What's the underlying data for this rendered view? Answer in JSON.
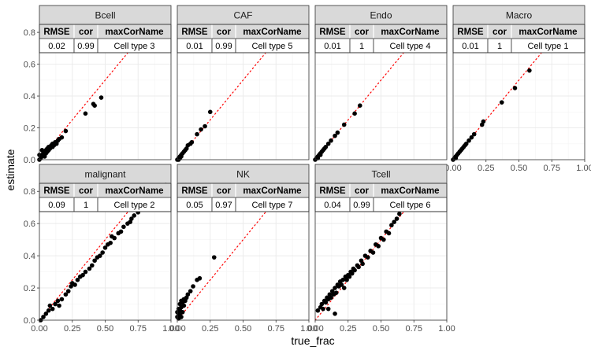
{
  "chart_data": {
    "type": "scatter",
    "xlabel": "true_frac",
    "ylabel": "estimate",
    "xlim": [
      0,
      1
    ],
    "ylim": [
      0,
      0.85
    ],
    "x_ticks": [
      "0.00",
      "0.25",
      "0.50",
      "0.75",
      "1.00"
    ],
    "y_ticks": [
      "0.0",
      "0.2",
      "0.4",
      "0.6",
      "0.8"
    ],
    "reference_line": "y = x (red dotted)",
    "grid": true,
    "colors": {
      "points": "#000000",
      "reference": "#ff0000",
      "strip_fill": "#d9d9d9",
      "header_fill": "#d9d9d9",
      "grid": "#ebebeb"
    },
    "table_columns": [
      "RMSE",
      "cor",
      "maxCorName"
    ],
    "panels": [
      {
        "name": "Bcell",
        "table": [
          "0.02",
          "0.99",
          "Cell type 3"
        ],
        "points": [
          [
            0.0,
            0.0
          ],
          [
            0.01,
            0.01
          ],
          [
            0.01,
            0.02
          ],
          [
            0.02,
            0.02
          ],
          [
            0.02,
            0.03
          ],
          [
            0.03,
            0.03
          ],
          [
            0.03,
            0.04
          ],
          [
            0.04,
            0.05
          ],
          [
            0.05,
            0.04
          ],
          [
            0.05,
            0.06
          ],
          [
            0.06,
            0.05
          ],
          [
            0.06,
            0.07
          ],
          [
            0.07,
            0.06
          ],
          [
            0.07,
            0.08
          ],
          [
            0.08,
            0.07
          ],
          [
            0.09,
            0.09
          ],
          [
            0.1,
            0.08
          ],
          [
            0.1,
            0.1
          ],
          [
            0.11,
            0.09
          ],
          [
            0.12,
            0.11
          ],
          [
            0.13,
            0.1
          ],
          [
            0.14,
            0.12
          ],
          [
            0.15,
            0.13
          ],
          [
            0.17,
            0.14
          ],
          [
            0.2,
            0.18
          ],
          [
            0.35,
            0.29
          ],
          [
            0.41,
            0.35
          ],
          [
            0.42,
            0.34
          ],
          [
            0.47,
            0.39
          ],
          [
            0.02,
            0.06
          ],
          [
            0.04,
            0.02
          ],
          [
            0.0,
            0.03
          ]
        ]
      },
      {
        "name": "CAF",
        "table": [
          "0.01",
          "0.99",
          "Cell type 5"
        ],
        "points": [
          [
            0.0,
            0.0
          ],
          [
            0.01,
            0.01
          ],
          [
            0.02,
            0.02
          ],
          [
            0.02,
            0.01
          ],
          [
            0.03,
            0.03
          ],
          [
            0.04,
            0.04
          ],
          [
            0.05,
            0.05
          ],
          [
            0.06,
            0.06
          ],
          [
            0.07,
            0.07
          ],
          [
            0.08,
            0.09
          ],
          [
            0.1,
            0.1
          ],
          [
            0.11,
            0.11
          ],
          [
            0.15,
            0.16
          ],
          [
            0.18,
            0.19
          ],
          [
            0.21,
            0.21
          ],
          [
            0.25,
            0.3
          ],
          [
            0.03,
            0.02
          ],
          [
            0.01,
            0.0
          ]
        ]
      },
      {
        "name": "Endo",
        "table": [
          "0.01",
          "1",
          "Cell type 4"
        ],
        "points": [
          [
            0.0,
            0.0
          ],
          [
            0.01,
            0.01
          ],
          [
            0.02,
            0.02
          ],
          [
            0.03,
            0.03
          ],
          [
            0.04,
            0.04
          ],
          [
            0.05,
            0.05
          ],
          [
            0.06,
            0.06
          ],
          [
            0.07,
            0.07
          ],
          [
            0.08,
            0.08
          ],
          [
            0.1,
            0.1
          ],
          [
            0.12,
            0.12
          ],
          [
            0.15,
            0.15
          ],
          [
            0.17,
            0.17
          ],
          [
            0.22,
            0.22
          ],
          [
            0.3,
            0.29
          ],
          [
            0.34,
            0.34
          ],
          [
            0.02,
            0.01
          ],
          [
            0.04,
            0.03
          ]
        ]
      },
      {
        "name": "Macro",
        "table": [
          "0.01",
          "1",
          "Cell type 1"
        ],
        "points": [
          [
            0.0,
            0.0
          ],
          [
            0.01,
            0.01
          ],
          [
            0.02,
            0.02
          ],
          [
            0.03,
            0.03
          ],
          [
            0.04,
            0.04
          ],
          [
            0.05,
            0.05
          ],
          [
            0.06,
            0.06
          ],
          [
            0.07,
            0.07
          ],
          [
            0.08,
            0.08
          ],
          [
            0.09,
            0.09
          ],
          [
            0.1,
            0.1
          ],
          [
            0.12,
            0.12
          ],
          [
            0.14,
            0.14
          ],
          [
            0.16,
            0.16
          ],
          [
            0.22,
            0.22
          ],
          [
            0.23,
            0.24
          ],
          [
            0.37,
            0.36
          ],
          [
            0.47,
            0.45
          ],
          [
            0.58,
            0.56
          ],
          [
            0.02,
            0.01
          ]
        ]
      },
      {
        "name": "malignant",
        "table": [
          "0.09",
          "1",
          "Cell type 2"
        ],
        "points": [
          [
            0.01,
            0.0
          ],
          [
            0.03,
            0.02
          ],
          [
            0.05,
            0.04
          ],
          [
            0.07,
            0.06
          ],
          [
            0.08,
            0.09
          ],
          [
            0.1,
            0.07
          ],
          [
            0.12,
            0.1
          ],
          [
            0.14,
            0.12
          ],
          [
            0.15,
            0.09
          ],
          [
            0.17,
            0.13
          ],
          [
            0.2,
            0.16
          ],
          [
            0.22,
            0.18
          ],
          [
            0.24,
            0.21
          ],
          [
            0.25,
            0.23
          ],
          [
            0.27,
            0.22
          ],
          [
            0.29,
            0.25
          ],
          [
            0.31,
            0.27
          ],
          [
            0.33,
            0.28
          ],
          [
            0.35,
            0.3
          ],
          [
            0.38,
            0.32
          ],
          [
            0.4,
            0.34
          ],
          [
            0.42,
            0.37
          ],
          [
            0.44,
            0.39
          ],
          [
            0.46,
            0.4
          ],
          [
            0.48,
            0.42
          ],
          [
            0.5,
            0.45
          ],
          [
            0.52,
            0.47
          ],
          [
            0.54,
            0.48
          ],
          [
            0.57,
            0.51
          ],
          [
            0.6,
            0.54
          ],
          [
            0.62,
            0.55
          ],
          [
            0.64,
            0.58
          ],
          [
            0.67,
            0.6
          ],
          [
            0.7,
            0.63
          ],
          [
            0.72,
            0.65
          ],
          [
            0.75,
            0.67
          ],
          [
            0.77,
            0.69
          ],
          [
            0.79,
            0.71
          ],
          [
            0.82,
            0.73
          ],
          [
            0.84,
            0.75
          ],
          [
            0.87,
            0.78
          ],
          [
            0.89,
            0.8
          ],
          [
            0.92,
            0.82
          ],
          [
            0.96,
            0.84
          ],
          [
            0.55,
            0.52
          ],
          [
            0.69,
            0.61
          ]
        ]
      },
      {
        "name": "NK",
        "table": [
          "0.05",
          "0.97",
          "Cell type 7"
        ],
        "points": [
          [
            0.0,
            0.02
          ],
          [
            0.01,
            0.04
          ],
          [
            0.01,
            0.07
          ],
          [
            0.02,
            0.06
          ],
          [
            0.02,
            0.1
          ],
          [
            0.03,
            0.08
          ],
          [
            0.03,
            0.12
          ],
          [
            0.04,
            0.05
          ],
          [
            0.04,
            0.11
          ],
          [
            0.05,
            0.09
          ],
          [
            0.05,
            0.13
          ],
          [
            0.06,
            0.12
          ],
          [
            0.07,
            0.14
          ],
          [
            0.08,
            0.16
          ],
          [
            0.1,
            0.18
          ],
          [
            0.12,
            0.21
          ],
          [
            0.15,
            0.25
          ],
          [
            0.17,
            0.26
          ],
          [
            0.28,
            0.39
          ],
          [
            0.0,
            0.05
          ],
          [
            0.01,
            0.01
          ],
          [
            0.02,
            0.03
          ],
          [
            0.03,
            0.02
          ]
        ]
      },
      {
        "name": "Tcell",
        "table": [
          "0.04",
          "0.99",
          "Cell type 6"
        ],
        "points": [
          [
            0.02,
            0.06
          ],
          [
            0.04,
            0.08
          ],
          [
            0.05,
            0.1
          ],
          [
            0.06,
            0.07
          ],
          [
            0.07,
            0.12
          ],
          [
            0.08,
            0.11
          ],
          [
            0.09,
            0.14
          ],
          [
            0.1,
            0.13
          ],
          [
            0.11,
            0.16
          ],
          [
            0.12,
            0.14
          ],
          [
            0.13,
            0.18
          ],
          [
            0.14,
            0.16
          ],
          [
            0.15,
            0.2
          ],
          [
            0.16,
            0.17
          ],
          [
            0.17,
            0.22
          ],
          [
            0.18,
            0.21
          ],
          [
            0.19,
            0.24
          ],
          [
            0.2,
            0.22
          ],
          [
            0.21,
            0.25
          ],
          [
            0.22,
            0.2
          ],
          [
            0.23,
            0.27
          ],
          [
            0.24,
            0.25
          ],
          [
            0.25,
            0.28
          ],
          [
            0.26,
            0.27
          ],
          [
            0.27,
            0.3
          ],
          [
            0.28,
            0.29
          ],
          [
            0.29,
            0.32
          ],
          [
            0.3,
            0.31
          ],
          [
            0.32,
            0.34
          ],
          [
            0.33,
            0.33
          ],
          [
            0.35,
            0.37
          ],
          [
            0.36,
            0.35
          ],
          [
            0.38,
            0.4
          ],
          [
            0.4,
            0.39
          ],
          [
            0.42,
            0.43
          ],
          [
            0.44,
            0.42
          ],
          [
            0.46,
            0.47
          ],
          [
            0.48,
            0.46
          ],
          [
            0.5,
            0.51
          ],
          [
            0.52,
            0.5
          ],
          [
            0.54,
            0.55
          ],
          [
            0.56,
            0.54
          ],
          [
            0.58,
            0.59
          ],
          [
            0.6,
            0.61
          ],
          [
            0.62,
            0.63
          ],
          [
            0.64,
            0.66
          ],
          [
            0.66,
            0.69
          ],
          [
            0.15,
            0.04
          ],
          [
            0.1,
            0.07
          ]
        ]
      }
    ]
  }
}
